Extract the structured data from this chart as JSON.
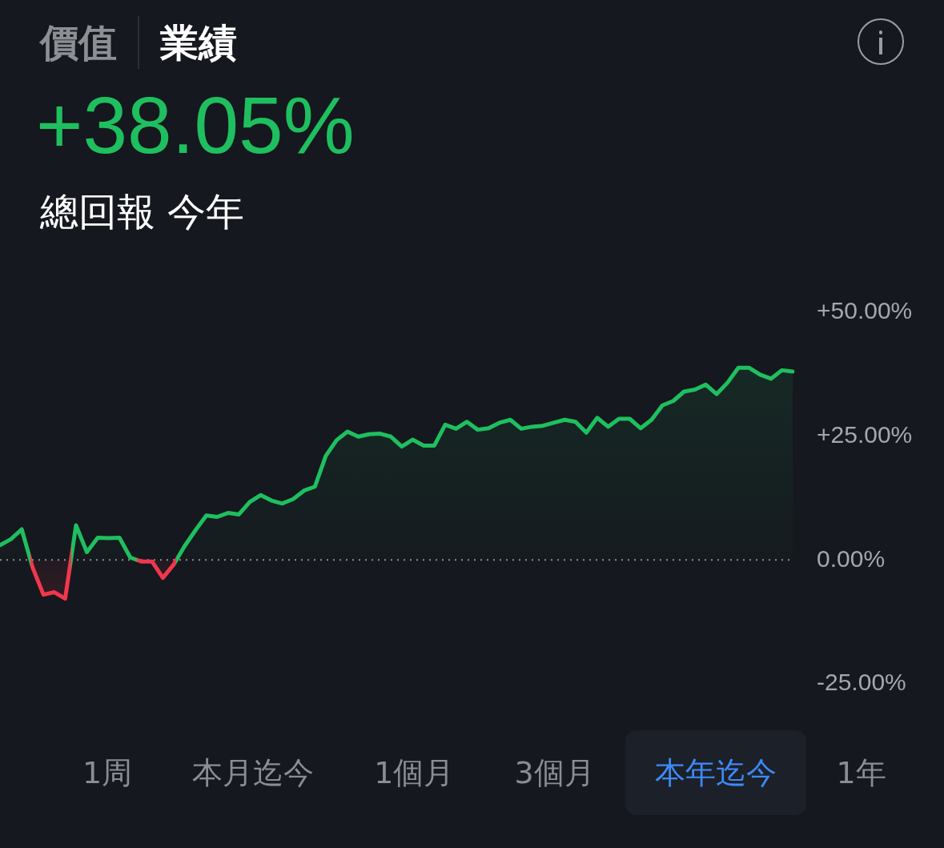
{
  "chart_data": {
    "type": "area",
    "title": "+38.05%",
    "subtitle": "總回報 今年",
    "annotations": [
      "價值",
      "業績",
      "1周",
      "本月迄今",
      "1個月",
      "3個月",
      "本年迄今",
      "1年"
    ],
    "categories": [
      null,
      null,
      null,
      null,
      null,
      null,
      null,
      null,
      null,
      null,
      null,
      null,
      null,
      null,
      null,
      null,
      null,
      null,
      null,
      null,
      null,
      null,
      null,
      null,
      null,
      null,
      null,
      null,
      null,
      null,
      null,
      null,
      null,
      null,
      null,
      null,
      null,
      null,
      null,
      null,
      null,
      null,
      null,
      null,
      null,
      null,
      null,
      null,
      null,
      null,
      null,
      null,
      null,
      null,
      null,
      null,
      null,
      null,
      null,
      null,
      null,
      null,
      null,
      null,
      null,
      null,
      null,
      null,
      null,
      null,
      null,
      null,
      null,
      null
    ],
    "values": [
      3.0,
      4.2,
      6.2,
      -1.5,
      -7.0,
      -6.5,
      -7.8,
      7.0,
      1.6,
      4.5,
      4.4,
      4.5,
      0.5,
      -0.3,
      -0.3,
      -3.6,
      -0.9,
      2.8,
      6.0,
      9.0,
      8.7,
      9.5,
      9.2,
      11.7,
      13.1,
      12.0,
      11.4,
      12.3,
      14.0,
      14.8,
      21.0,
      24.2,
      25.9,
      24.9,
      25.4,
      25.5,
      24.9,
      22.9,
      24.3,
      23.1,
      23.1,
      27.3,
      26.5,
      27.9,
      26.3,
      26.6,
      27.7,
      28.3,
      26.5,
      26.9,
      27.1,
      27.7,
      28.3,
      27.9,
      25.7,
      28.7,
      26.9,
      28.5,
      28.5,
      26.6,
      28.3,
      31.2,
      32.1,
      34.0,
      34.4,
      35.4,
      33.5,
      35.8,
      38.8,
      38.8,
      37.4,
      36.6,
      38.3,
      38.05
    ],
    "colors": [
      "#1fbf5f",
      "#1fbf5f",
      "#1fbf5f",
      "#f2364d",
      "#f2364d",
      "#f2364d",
      "#f2364d",
      "#1fbf5f",
      "#1fbf5f",
      "#1fbf5f",
      "#1fbf5f",
      "#1fbf5f",
      "#1fbf5f",
      "#f2364d",
      "#f2364d",
      "#f2364d",
      "#f2364d",
      "#1fbf5f",
      "#1fbf5f",
      "#1fbf5f",
      "#1fbf5f",
      "#1fbf5f",
      "#1fbf5f",
      "#1fbf5f",
      "#1fbf5f",
      "#1fbf5f",
      "#1fbf5f",
      "#1fbf5f",
      "#1fbf5f",
      "#1fbf5f",
      "#1fbf5f",
      "#1fbf5f",
      "#1fbf5f",
      "#1fbf5f",
      "#1fbf5f",
      "#1fbf5f",
      "#1fbf5f",
      "#1fbf5f",
      "#1fbf5f",
      "#1fbf5f",
      "#1fbf5f",
      "#1fbf5f",
      "#1fbf5f",
      "#1fbf5f",
      "#1fbf5f",
      "#1fbf5f",
      "#1fbf5f",
      "#1fbf5f",
      "#1fbf5f",
      "#1fbf5f",
      "#1fbf5f",
      "#1fbf5f",
      "#1fbf5f",
      "#1fbf5f",
      "#1fbf5f",
      "#1fbf5f",
      "#1fbf5f",
      "#1fbf5f",
      "#1fbf5f",
      "#1fbf5f",
      "#1fbf5f",
      "#1fbf5f",
      "#1fbf5f",
      "#1fbf5f",
      "#1fbf5f",
      "#1fbf5f",
      "#1fbf5f",
      "#1fbf5f",
      "#1fbf5f",
      "#1fbf5f",
      "#1fbf5f",
      "#1fbf5f",
      "#1fbf5f",
      "#1fbf5f"
    ],
    "ylim": [
      -25,
      50
    ],
    "yticks": [
      {
        "value": 50,
        "label": "+50.00%"
      },
      {
        "value": 25,
        "label": "+25.00%"
      },
      {
        "value": 0,
        "label": "0.00%"
      },
      {
        "value": -25,
        "label": "-25.00%"
      }
    ],
    "tick_labels": "y",
    "ref_lines": [
      {
        "axis": "y",
        "value": 0,
        "color": "#8b9099",
        "line_style": "dotted"
      }
    ]
  }
}
